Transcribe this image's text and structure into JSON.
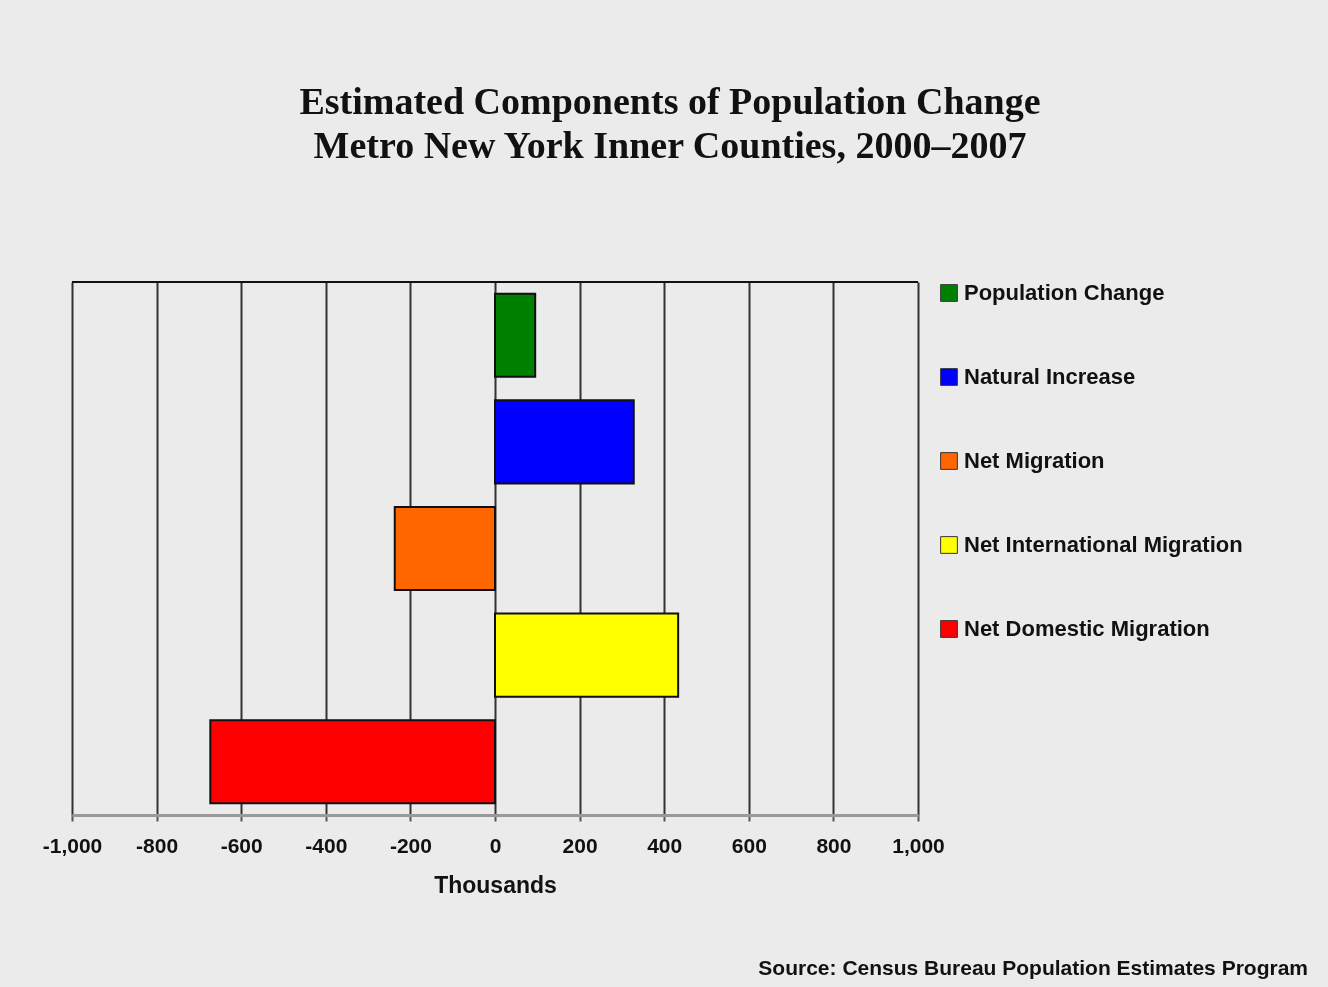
{
  "chart_data": {
    "type": "bar",
    "orientation": "horizontal",
    "title": "Estimated Components of Population Change",
    "subtitle": "Metro New York Inner Counties, 2000–2007",
    "xlabel": "Thousands",
    "categories": [
      null,
      null,
      null,
      null,
      null
    ],
    "series": [
      {
        "name": "Population Change",
        "color": "#008000",
        "values": [
          95,
          null,
          null,
          null,
          null
        ]
      },
      {
        "name": "Natural Increase",
        "color": "#0000ff",
        "values": [
          null,
          328,
          null,
          null,
          null
        ]
      },
      {
        "name": "Net Migration",
        "color": "#ff6600",
        "values": [
          null,
          null,
          -237,
          null,
          null
        ]
      },
      {
        "name": "Net International Migration",
        "color": "#ffff00",
        "values": [
          null,
          null,
          null,
          433,
          null
        ]
      },
      {
        "name": "Net Domestic Migration",
        "color": "#ff0000",
        "values": [
          null,
          null,
          null,
          null,
          -673
        ]
      }
    ],
    "xlim": [
      -1000,
      1000
    ],
    "xticks": [
      {
        "value": -1000,
        "label": "-1,000"
      },
      {
        "value": -800,
        "label": "-800"
      },
      {
        "value": -600,
        "label": "-600"
      },
      {
        "value": -400,
        "label": "-400"
      },
      {
        "value": -200,
        "label": "-200"
      },
      0,
      200,
      400,
      600,
      800,
      {
        "value": 1000,
        "label": "1,000"
      }
    ],
    "grid": "x",
    "legend": "right",
    "tick_labels": "x",
    "annotations": [
      "Source: Census Bureau Population Estimates Program"
    ]
  }
}
